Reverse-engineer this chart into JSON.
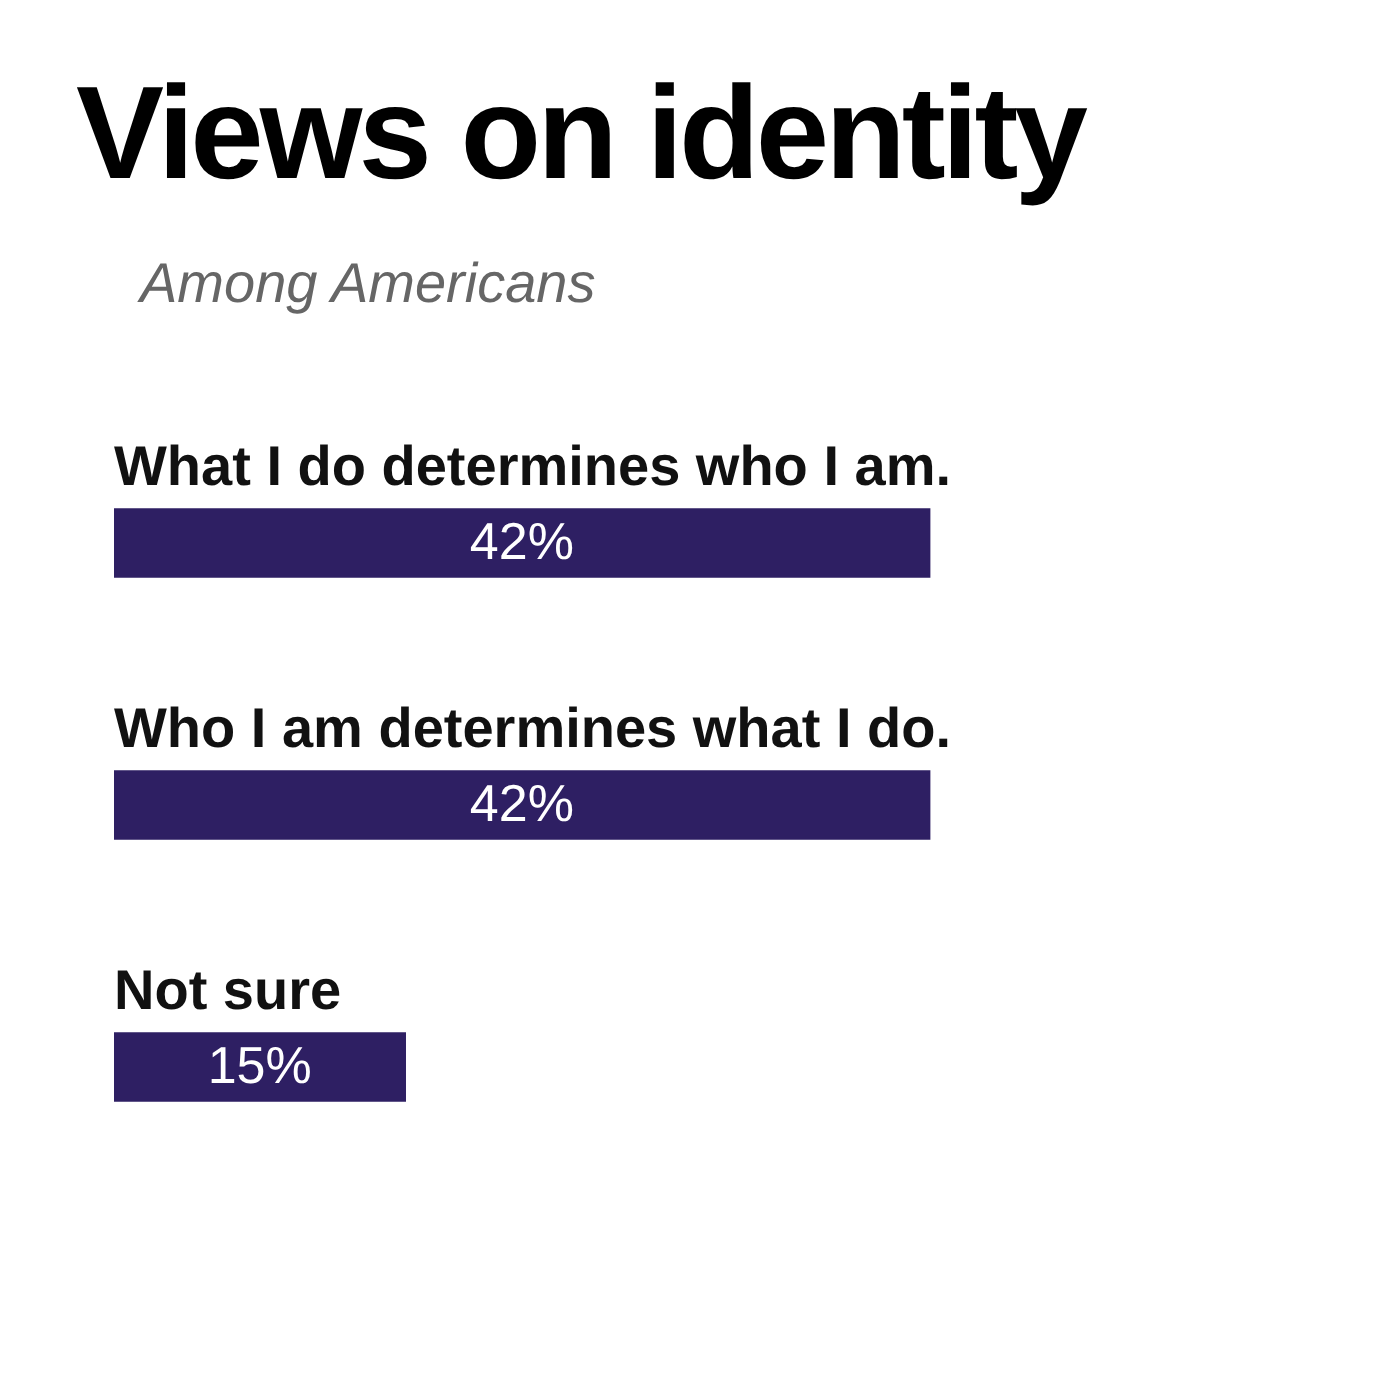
{
  "chart_data": {
    "type": "bar",
    "orientation": "horizontal",
    "title": "Views on identity",
    "subtitle": "Among Americans",
    "categories": [
      "What I do determines who I am.",
      "Who I am determines what I do.",
      "Not sure"
    ],
    "values": [
      42,
      42,
      15
    ],
    "value_labels": [
      "42%",
      "42%",
      "15%"
    ],
    "color": "#2e1f63",
    "legend": false
  }
}
